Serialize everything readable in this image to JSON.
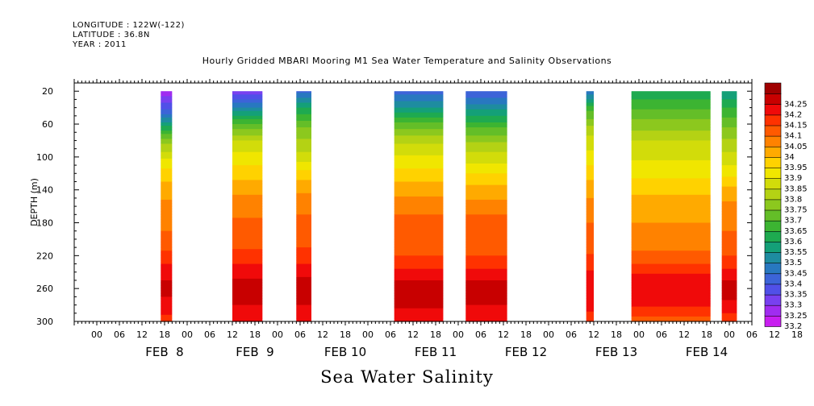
{
  "header": {
    "longitude": "LONGITUDE : 122W(-122)",
    "latitude": "LATITUDE : 36.8N",
    "year": "YEAR : 2011"
  },
  "figure_title": "Hourly Gridded MBARI Mooring M1 Sea Water Temperature and Salinity Observations",
  "caption": "Sea Water Salinity",
  "chart_data": {
    "type": "heatmap",
    "title": "Hourly Gridded MBARI Mooring M1 Sea Water Temperature and Salinity Observations",
    "xlabel": "",
    "ylabel": "DEPTH (m)",
    "x_unit": "hours since FEB 8 00:00, 2011",
    "xlim": [
      -18,
      162
    ],
    "ylim": [
      300,
      10
    ],
    "y_reversed": true,
    "y_ticks": [
      20,
      60,
      100,
      140,
      180,
      220,
      260,
      300
    ],
    "x_hour_ticks": [
      "00",
      "06",
      "12",
      "18",
      "00",
      "06",
      "12",
      "18",
      "00",
      "06",
      "12",
      "18",
      "00",
      "06",
      "12",
      "18",
      "00",
      "06",
      "12",
      "18",
      "00",
      "06",
      "12",
      "18",
      "00",
      "06",
      "12",
      "18",
      "00",
      "06",
      "12",
      "18"
    ],
    "day_labels": [
      "FEB  8",
      "FEB  9",
      "FEB 10",
      "FEB 11",
      "FEB 12",
      "FEB 13",
      "FEB 14"
    ],
    "colorbar_levels": [
      33.2,
      33.25,
      33.3,
      33.35,
      33.4,
      33.45,
      33.5,
      33.55,
      33.6,
      33.65,
      33.7,
      33.75,
      33.8,
      33.85,
      33.9,
      33.95,
      34,
      34.05,
      34.1,
      34.15,
      34.2,
      34.25
    ],
    "colorbar_labels": [
      "33.2",
      "33.25",
      "33.3",
      "33.35",
      "33.4",
      "33.45",
      "33.5",
      "33.55",
      "33.6",
      "33.65",
      "33.7",
      "33.75",
      "33.8",
      "33.85",
      "33.9",
      "33.95",
      "34",
      "34.05",
      "34.1",
      "34.15",
      "34.2",
      "34.25"
    ],
    "colorbar_colors": [
      "#c81ef0",
      "#a02cf0",
      "#7840f0",
      "#5050e8",
      "#3c64d8",
      "#2878c0",
      "#1e8ca0",
      "#14a078",
      "#1eaa50",
      "#3cb432",
      "#64be28",
      "#8cc81e",
      "#b4d214",
      "#d2dc0a",
      "#f0e600",
      "#ffd200",
      "#ffaa00",
      "#ff8200",
      "#ff5a00",
      "#ff3200",
      "#f00a0a",
      "#c80000",
      "#a00000"
    ],
    "series": [
      {
        "name": "segment-1",
        "x_start": 5,
        "x_end": 7,
        "profile": [
          [
            20,
            33.22
          ],
          [
            40,
            33.33
          ],
          [
            60,
            33.52
          ],
          [
            80,
            33.72
          ],
          [
            100,
            33.84
          ],
          [
            120,
            33.92
          ],
          [
            140,
            33.98
          ],
          [
            170,
            34.03
          ],
          [
            200,
            34.06
          ],
          [
            220,
            34.12
          ],
          [
            240,
            34.18
          ],
          [
            260,
            34.22
          ],
          [
            280,
            34.18
          ],
          [
            300,
            34.13
          ]
        ]
      },
      {
        "name": "segment-2",
        "x_start": 24,
        "x_end": 31,
        "profile": [
          [
            20,
            33.25
          ],
          [
            40,
            33.45
          ],
          [
            60,
            33.65
          ],
          [
            80,
            33.8
          ],
          [
            100,
            33.87
          ],
          [
            120,
            33.93
          ],
          [
            140,
            33.98
          ],
          [
            160,
            34.04
          ],
          [
            200,
            34.07
          ],
          [
            220,
            34.12
          ],
          [
            240,
            34.18
          ],
          [
            260,
            34.23
          ],
          [
            280,
            34.2
          ],
          [
            300,
            34.15
          ]
        ]
      },
      {
        "name": "segment-3",
        "x_start": 41,
        "x_end": 44,
        "profile": [
          [
            20,
            33.38
          ],
          [
            40,
            33.55
          ],
          [
            60,
            33.68
          ],
          [
            80,
            33.76
          ],
          [
            100,
            33.82
          ],
          [
            120,
            33.92
          ],
          [
            140,
            33.99
          ],
          [
            170,
            34.05
          ],
          [
            200,
            34.08
          ],
          [
            220,
            34.12
          ],
          [
            240,
            34.18
          ],
          [
            260,
            34.24
          ],
          [
            280,
            34.2
          ],
          [
            300,
            34.15
          ]
        ]
      },
      {
        "name": "segment-4",
        "x_start": 67,
        "x_end": 79,
        "profile": [
          [
            20,
            33.38
          ],
          [
            40,
            33.5
          ],
          [
            60,
            33.66
          ],
          [
            80,
            33.78
          ],
          [
            100,
            33.86
          ],
          [
            120,
            33.92
          ],
          [
            140,
            33.98
          ],
          [
            170,
            34.05
          ],
          [
            210,
            34.07
          ],
          [
            230,
            34.13
          ],
          [
            250,
            34.2
          ],
          [
            270,
            34.24
          ],
          [
            290,
            34.18
          ],
          [
            300,
            34.15
          ]
        ]
      },
      {
        "name": "segment-5",
        "x_start": 86,
        "x_end": 96,
        "profile": [
          [
            20,
            33.35
          ],
          [
            40,
            33.48
          ],
          [
            60,
            33.62
          ],
          [
            80,
            33.74
          ],
          [
            100,
            33.82
          ],
          [
            120,
            33.9
          ],
          [
            140,
            33.97
          ],
          [
            170,
            34.05
          ],
          [
            210,
            34.07
          ],
          [
            230,
            34.13
          ],
          [
            250,
            34.2
          ],
          [
            260,
            34.24
          ],
          [
            280,
            34.2
          ],
          [
            300,
            34.15
          ]
        ]
      },
      {
        "name": "segment-6",
        "x_start": 118,
        "x_end": 119,
        "profile": [
          [
            20,
            33.4
          ],
          [
            40,
            33.62
          ],
          [
            60,
            33.74
          ],
          [
            80,
            33.82
          ],
          [
            100,
            33.87
          ],
          [
            120,
            33.93
          ],
          [
            140,
            33.98
          ],
          [
            170,
            34.04
          ],
          [
            210,
            34.08
          ],
          [
            230,
            34.13
          ],
          [
            260,
            34.2
          ],
          [
            300,
            34.13
          ]
        ]
      },
      {
        "name": "segment-7",
        "x_start": 130,
        "x_end": 150,
        "profile": [
          [
            20,
            33.56
          ],
          [
            40,
            33.64
          ],
          [
            60,
            33.72
          ],
          [
            80,
            33.8
          ],
          [
            100,
            33.84
          ],
          [
            120,
            33.88
          ],
          [
            140,
            33.94
          ],
          [
            180,
            34.0
          ],
          [
            210,
            34.04
          ],
          [
            230,
            34.1
          ],
          [
            250,
            34.18
          ],
          [
            270,
            34.2
          ],
          [
            290,
            34.12
          ],
          [
            300,
            34.08
          ]
        ]
      },
      {
        "name": "segment-8",
        "x_start": 154,
        "x_end": 157,
        "profile": [
          [
            20,
            33.5
          ],
          [
            40,
            33.6
          ],
          [
            60,
            33.68
          ],
          [
            80,
            33.76
          ],
          [
            100,
            33.82
          ],
          [
            120,
            33.88
          ],
          [
            140,
            33.97
          ],
          [
            170,
            34.03
          ],
          [
            210,
            34.07
          ],
          [
            230,
            34.13
          ],
          [
            250,
            34.2
          ],
          [
            260,
            34.24
          ],
          [
            280,
            34.18
          ],
          [
            300,
            34.12
          ]
        ]
      }
    ]
  }
}
